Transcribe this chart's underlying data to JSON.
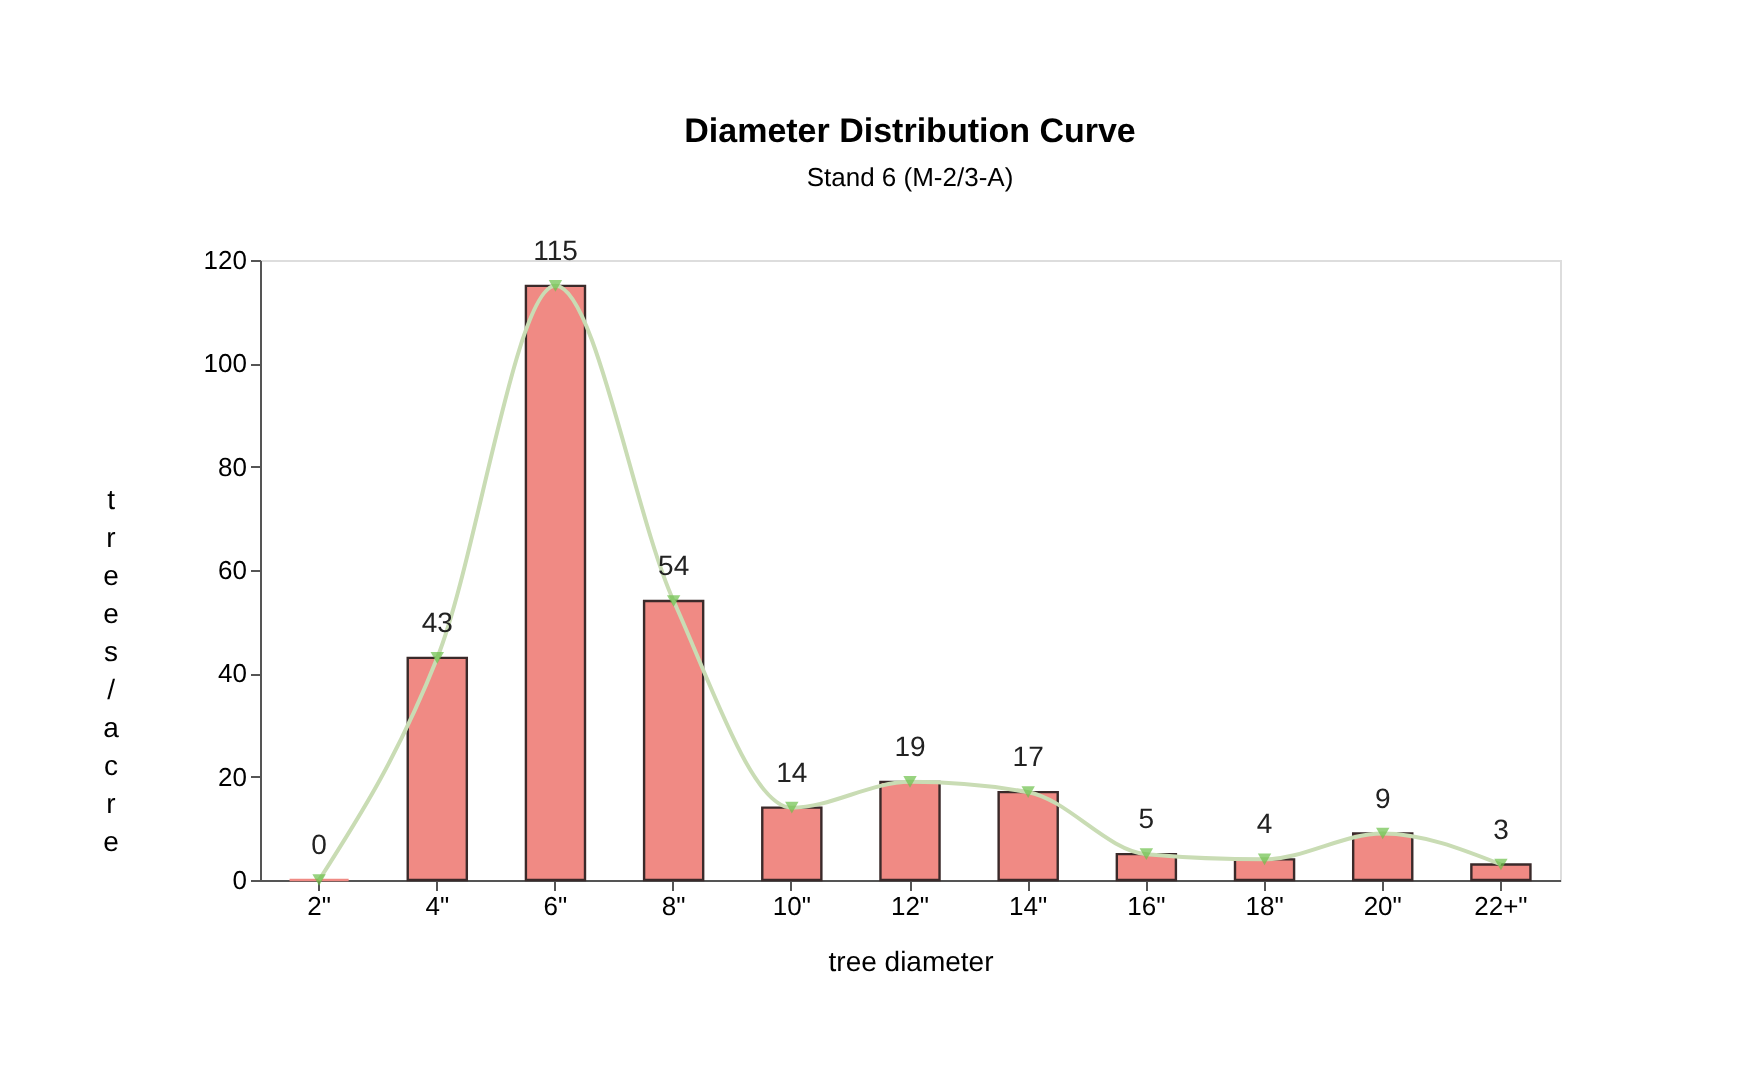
{
  "chart_data": {
    "type": "bar",
    "title": "Diameter Distribution Curve",
    "subtitle": "Stand 6  (M-2/3-A)",
    "xlabel": "tree diameter",
    "ylabel": "trees/acre",
    "categories": [
      "2\"",
      "4\"",
      "6\"",
      "8\"",
      "10\"",
      "12\"",
      "14\"",
      "16\"",
      "18\"",
      "20\"",
      "22+\""
    ],
    "series": [
      {
        "color": "#f08a84",
        "values": [
          0,
          43,
          115,
          54,
          14,
          19,
          17,
          5,
          4,
          9,
          3
        ],
        "value_labels": [
          "0",
          "43",
          "115",
          "54",
          "14",
          "19",
          "17",
          "5",
          "4",
          "9",
          "3"
        ]
      },
      {
        "type": "line",
        "color": "#c9dcb4",
        "marker": "triangle",
        "values": [
          0,
          43,
          115,
          54,
          14,
          19,
          17,
          5,
          4,
          9,
          3
        ]
      }
    ],
    "ylim": [
      0,
      120
    ],
    "yticks": [
      0,
      20,
      40,
      60,
      80,
      100,
      120
    ],
    "grid": false
  }
}
